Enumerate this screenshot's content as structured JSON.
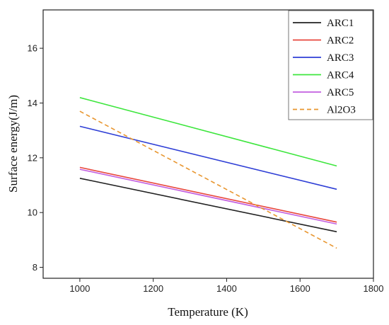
{
  "chart_data": {
    "type": "line",
    "title": "",
    "xlabel": "Temperature (K)",
    "ylabel": "Surface energy(J/m)",
    "xlim": [
      900,
      1800
    ],
    "ylim": [
      7.6,
      17.4
    ],
    "x_ticks": [
      "1000",
      "1200",
      "1400",
      "1600",
      "1800"
    ],
    "y_ticks": [
      "8",
      "10",
      "12",
      "14",
      "16"
    ],
    "grid": false,
    "legend_position": "top-right",
    "series": [
      {
        "name": "ARC1",
        "color": "#222222",
        "dash": "solid",
        "x": [
          1000,
          1700
        ],
        "y": [
          11.25,
          9.3
        ]
      },
      {
        "name": "ARC2",
        "color": "#e8463c",
        "dash": "solid",
        "x": [
          1000,
          1700
        ],
        "y": [
          11.65,
          9.65
        ]
      },
      {
        "name": "ARC3",
        "color": "#2f3fd6",
        "dash": "solid",
        "x": [
          1000,
          1700
        ],
        "y": [
          13.15,
          10.85
        ]
      },
      {
        "name": "ARC4",
        "color": "#3ee63e",
        "dash": "solid",
        "x": [
          1000,
          1700
        ],
        "y": [
          14.2,
          11.7
        ]
      },
      {
        "name": "ARC5",
        "color": "#c25fe0",
        "dash": "solid",
        "x": [
          1000,
          1700
        ],
        "y": [
          11.58,
          9.58
        ]
      },
      {
        "name": "Al2O3",
        "color": "#e8962f",
        "dash": "dashed",
        "x": [
          1000,
          1700
        ],
        "y": [
          13.7,
          8.7
        ]
      }
    ]
  }
}
